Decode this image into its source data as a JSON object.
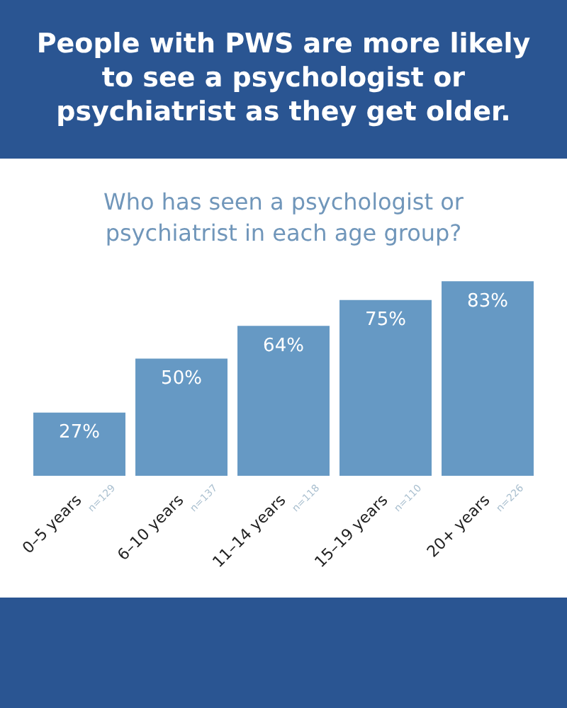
{
  "chart_data": {
    "type": "bar",
    "title": "People with PWS are more likely to see a psychologist or psychiatrist as they get older.",
    "subtitle": "Who has seen a psychologist or psychiatrist in each age group?",
    "categories": [
      "0–5 years",
      "6–10 years",
      "11–14 years",
      "15–19 years",
      "20+ years"
    ],
    "values": [
      27,
      50,
      64,
      75,
      83
    ],
    "color": "#6699c4",
    "value_labels": [
      "27%",
      "50%",
      "64%",
      "75%",
      "83%"
    ],
    "annotations": [
      "n=129",
      "n=137",
      "n=118",
      "n=110",
      "n=226"
    ],
    "grid": false,
    "legend": false
  }
}
